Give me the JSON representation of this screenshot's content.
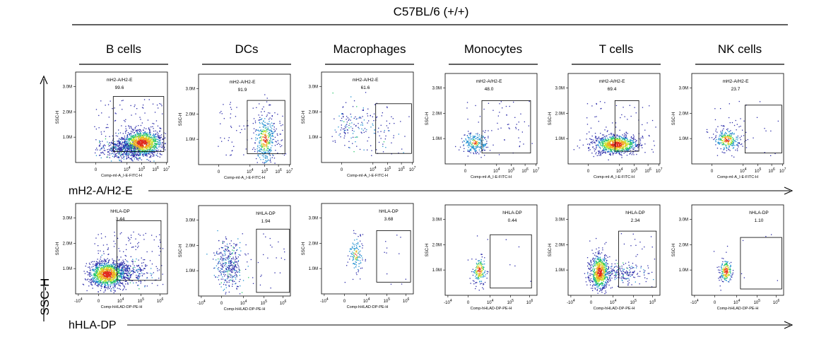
{
  "chart_data": {
    "type": "scatter",
    "title": "C57BL/6 (+/+)",
    "y_axis_label": "SSC-H",
    "rows": [
      {
        "row_label": "mH2-A/H2-E",
        "gate_name": "mH2-A/H2-E",
        "x_axis_title": "Comp-mI-A_I-E-FITC-H",
        "x_ticks": [
          "0",
          "10^4",
          "10^5",
          "10^6",
          "10^7"
        ],
        "y_ticks": [
          "1.0M",
          "2.0M",
          "3.0M"
        ]
      },
      {
        "row_label": "hHLA-DP",
        "gate_name": "hHLA-DP",
        "x_axis_title": "Comp-hHLAD-DP-PE-H",
        "x_ticks": [
          "-10^4",
          "0",
          "10^4",
          "10^5",
          "10^6"
        ],
        "y_ticks": [
          "1.0M",
          "2.0M",
          "3.0M"
        ]
      }
    ],
    "populations": [
      "B cells",
      "DCs",
      "Macrophages",
      "Monocytes",
      "T cells",
      "NK cells"
    ],
    "gate_percentages": [
      [
        "99.6",
        "91.9",
        "61.6",
        "48.0",
        "69.4",
        "23.7"
      ],
      [
        "3.44",
        "1.94",
        "3.68",
        "0.44",
        "2.34",
        "1.10"
      ]
    ]
  }
}
